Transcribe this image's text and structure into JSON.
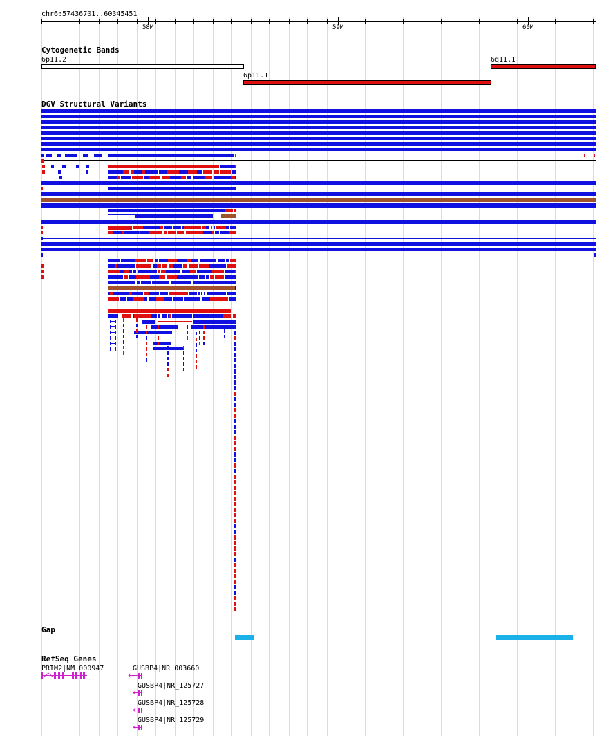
{
  "ruler": {
    "region": "chr6:57436701..60345451",
    "ticks": [
      "58M",
      "59M",
      "60M"
    ]
  },
  "tracks": {
    "cytoband": {
      "title": "Cytogenetic Bands",
      "bands": [
        {
          "label": "6p11.2",
          "color": "#ffffff"
        },
        {
          "label": "6p11.1",
          "color": "#e01010"
        },
        {
          "label": "6q11.1",
          "color": "#e01010"
        }
      ]
    },
    "dgv": {
      "title": "DGV Structural Variants",
      "colors": {
        "loss": "#e01010",
        "gain": "#1010e0",
        "gain_loss": "#a0522d"
      }
    },
    "gap": {
      "title": "Gap",
      "color": "#1ab0e8"
    },
    "refseq": {
      "title": "RefSeq Genes",
      "color": "#d020d0",
      "genes": [
        {
          "label": "PRIM2|NM_000947"
        },
        {
          "label": "GUSBP4|NR_003660"
        },
        {
          "label": "GUSBP4|NR_125727"
        },
        {
          "label": "GUSBP4|NR_125728"
        },
        {
          "label": "GUSBP4|NR_125729"
        }
      ]
    }
  }
}
